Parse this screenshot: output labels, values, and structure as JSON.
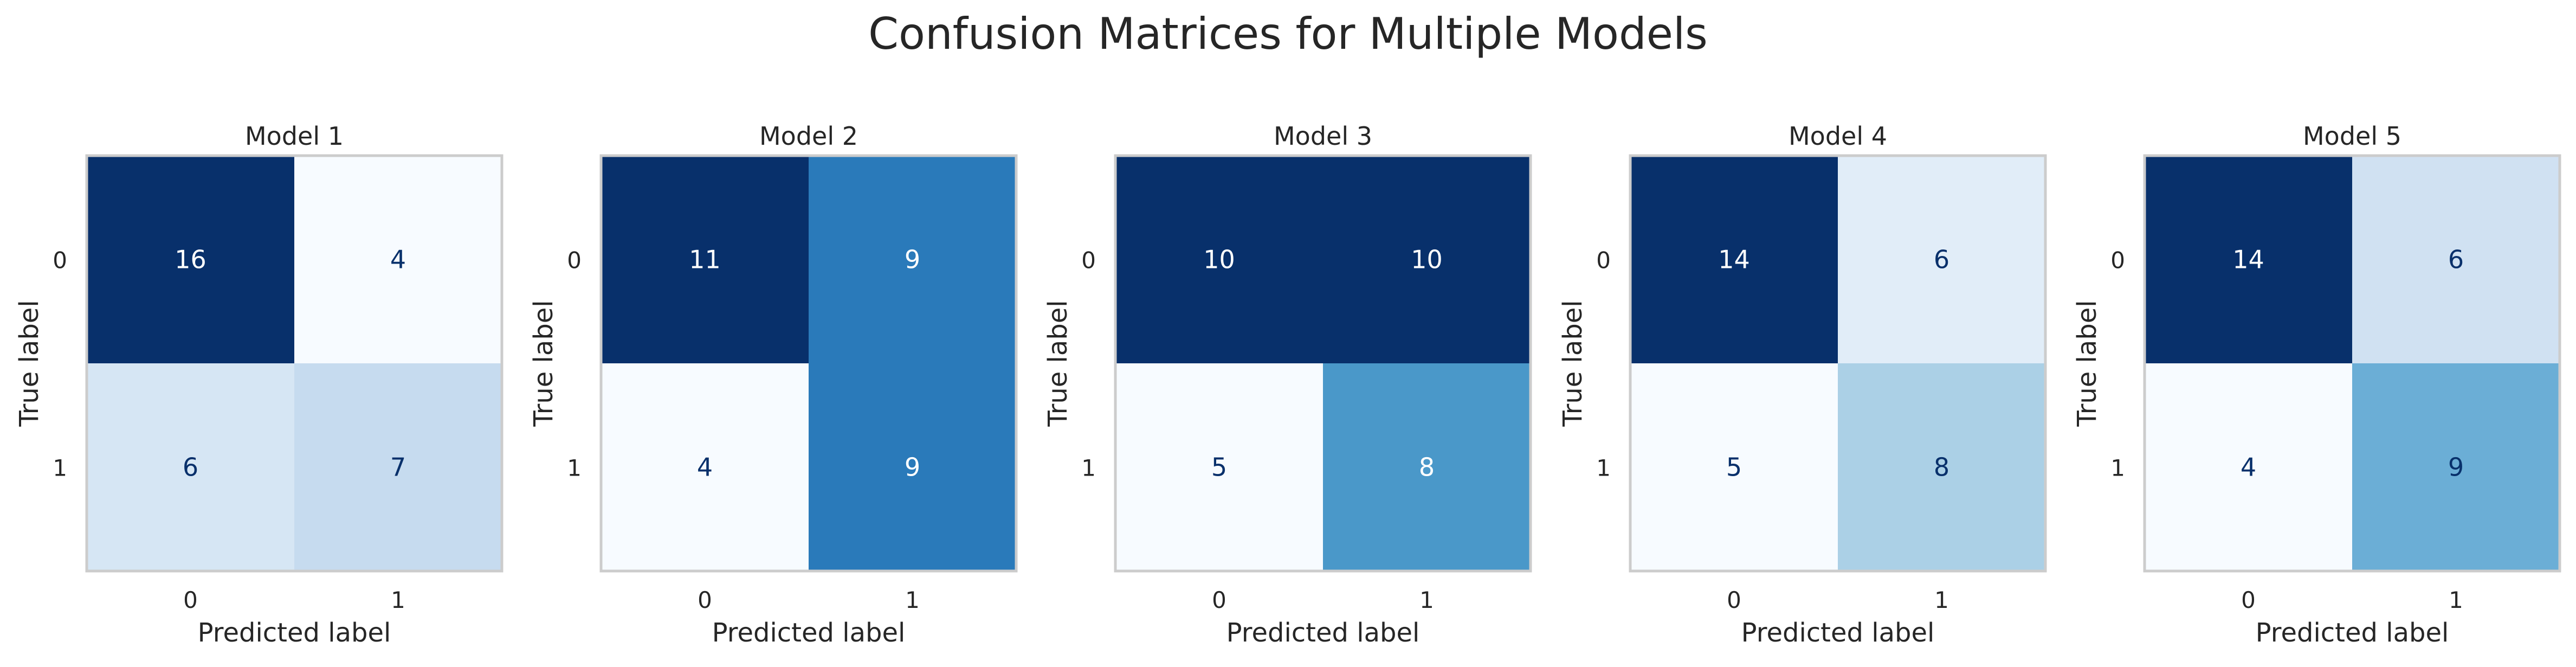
{
  "chart_data": {
    "type": "heatmap",
    "title": "Confusion Matrices for Multiple Models",
    "colormap": "Blues",
    "colors": {
      "text_dark": "#08306b",
      "text_light": "#ffffff",
      "axes_edge": "#cccccc",
      "label": "#262626"
    },
    "matrices": [
      {
        "title": "Model 1",
        "xlabel": "Predicted label",
        "ylabel": "True label",
        "x_ticks": [
          "0",
          "1"
        ],
        "y_ticks": [
          "0",
          "1"
        ],
        "values": [
          [
            16,
            4
          ],
          [
            6,
            7
          ]
        ]
      },
      {
        "title": "Model 2",
        "xlabel": "Predicted label",
        "ylabel": "True label",
        "x_ticks": [
          "0",
          "1"
        ],
        "y_ticks": [
          "0",
          "1"
        ],
        "values": [
          [
            11,
            9
          ],
          [
            4,
            9
          ]
        ]
      },
      {
        "title": "Model 3",
        "xlabel": "Predicted label",
        "ylabel": "True label",
        "x_ticks": [
          "0",
          "1"
        ],
        "y_ticks": [
          "0",
          "1"
        ],
        "values": [
          [
            10,
            10
          ],
          [
            5,
            8
          ]
        ]
      },
      {
        "title": "Model 4",
        "xlabel": "Predicted label",
        "ylabel": "True label",
        "x_ticks": [
          "0",
          "1"
        ],
        "y_ticks": [
          "0",
          "1"
        ],
        "values": [
          [
            14,
            6
          ],
          [
            5,
            8
          ]
        ]
      },
      {
        "title": "Model 5",
        "xlabel": "Predicted label",
        "ylabel": "True label",
        "x_ticks": [
          "0",
          "1"
        ],
        "y_ticks": [
          "0",
          "1"
        ],
        "values": [
          [
            14,
            6
          ],
          [
            4,
            9
          ]
        ]
      }
    ]
  }
}
